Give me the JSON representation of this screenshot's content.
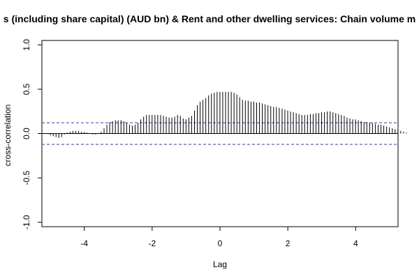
{
  "chart_data": {
    "type": "bar",
    "title": "s (including share capital) (AUD bn)  & Rent and other dwelling services: Chain volume m",
    "xlabel": "Lag",
    "ylabel": "cross-correlation",
    "xlim": [
      -5.25,
      5.25
    ],
    "ylim": [
      -1.05,
      1.05
    ],
    "x_ticks": [
      -4,
      -2,
      0,
      2,
      4
    ],
    "y_ticks": [
      -1.0,
      -0.5,
      0.0,
      0.5,
      1.0
    ],
    "x_tick_labels": [
      "-4",
      "-2",
      "0",
      "2",
      "4"
    ],
    "y_tick_labels": [
      "-1.0",
      "-0.5",
      "0.0",
      "0.5",
      "1.0"
    ],
    "confidence_limits": [
      0.122,
      -0.122
    ],
    "grid": false,
    "colors": {
      "bars": "#000000",
      "confidence": "#3333cc",
      "axes": "#000000"
    },
    "lag_start": -5.0,
    "lag_step": 0.0833,
    "values": [
      -0.02,
      -0.03,
      -0.04,
      -0.05,
      -0.04,
      -0.01,
      0.01,
      0.02,
      0.03,
      0.03,
      0.03,
      0.02,
      0.02,
      0.01,
      0.0,
      -0.01,
      -0.01,
      0.0,
      0.02,
      0.06,
      0.1,
      0.13,
      0.14,
      0.15,
      0.15,
      0.15,
      0.14,
      0.12,
      0.1,
      0.09,
      0.1,
      0.12,
      0.16,
      0.19,
      0.21,
      0.21,
      0.21,
      0.21,
      0.21,
      0.21,
      0.2,
      0.19,
      0.18,
      0.18,
      0.19,
      0.21,
      0.2,
      0.17,
      0.16,
      0.18,
      0.2,
      0.26,
      0.32,
      0.36,
      0.38,
      0.4,
      0.43,
      0.45,
      0.46,
      0.47,
      0.47,
      0.47,
      0.47,
      0.47,
      0.47,
      0.46,
      0.44,
      0.41,
      0.38,
      0.37,
      0.37,
      0.36,
      0.36,
      0.35,
      0.35,
      0.34,
      0.33,
      0.32,
      0.31,
      0.3,
      0.3,
      0.29,
      0.28,
      0.27,
      0.26,
      0.25,
      0.24,
      0.23,
      0.22,
      0.21,
      0.21,
      0.21,
      0.22,
      0.22,
      0.23,
      0.23,
      0.24,
      0.24,
      0.25,
      0.25,
      0.24,
      0.23,
      0.22,
      0.21,
      0.2,
      0.18,
      0.17,
      0.16,
      0.16,
      0.15,
      0.14,
      0.13,
      0.13,
      0.12,
      0.12,
      0.11,
      0.1,
      0.1,
      0.09,
      0.08,
      0.07,
      0.06,
      0.05,
      0.04,
      0.03,
      0.02,
      0.01
    ]
  }
}
